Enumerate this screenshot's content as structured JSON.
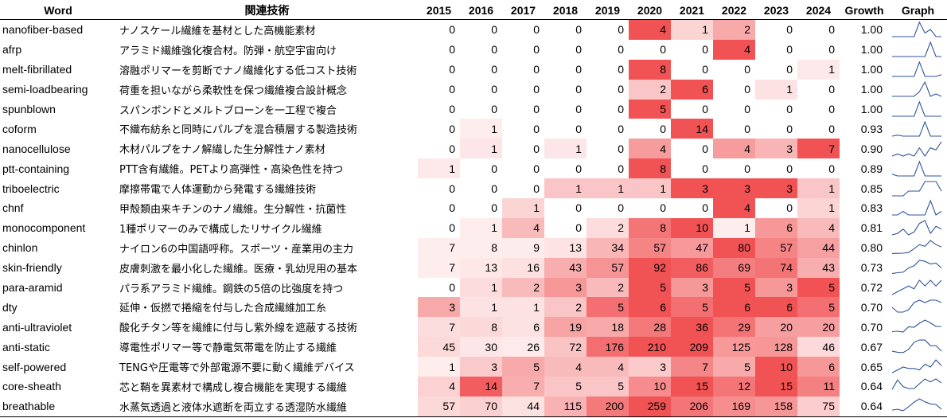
{
  "columns": {
    "word": "Word",
    "tech": "関連技術",
    "years": [
      "2015",
      "2016",
      "2017",
      "2018",
      "2019",
      "2020",
      "2021",
      "2022",
      "2023",
      "2024"
    ],
    "growth": "Growth",
    "graph": "Graph"
  },
  "heat_color": "#f0494b",
  "sparkline_color": "#2f5597",
  "rows": [
    {
      "word": "nanofiber-based",
      "tech": "ナノスケール繊維を基材とした高機能素材",
      "values": [
        0,
        0,
        0,
        0,
        0,
        4,
        1,
        2,
        0,
        0
      ],
      "growth": "1.00"
    },
    {
      "word": "afrp",
      "tech": "アラミド繊維強化複合材。防弾・航空宇宙向け",
      "values": [
        0,
        0,
        0,
        0,
        0,
        0,
        0,
        4,
        0,
        0
      ],
      "growth": "1.00"
    },
    {
      "word": "melt-fibrillated",
      "tech": "溶融ポリマーを剪断でナノ繊維化する低コスト技術",
      "values": [
        0,
        0,
        0,
        0,
        0,
        8,
        0,
        0,
        0,
        1
      ],
      "growth": "1.00"
    },
    {
      "word": "semi-loadbearing",
      "tech": "荷重を担いながら柔軟性を保つ繊維複合設計概念",
      "values": [
        0,
        0,
        0,
        0,
        0,
        2,
        6,
        0,
        1,
        0
      ],
      "growth": "1.00"
    },
    {
      "word": "spunblown",
      "tech": "スパンボンドとメルトブローンを一工程で複合",
      "values": [
        0,
        0,
        0,
        0,
        0,
        5,
        0,
        0,
        0,
        0
      ],
      "growth": "1.00"
    },
    {
      "word": "coform",
      "tech": "不織布紡糸と同時にパルプを混合積層する製造技術",
      "values": [
        0,
        1,
        0,
        0,
        0,
        0,
        14,
        0,
        0,
        0
      ],
      "growth": "0.93"
    },
    {
      "word": "nanocellulose",
      "tech": "木材パルプをナノ解繊した生分解性ナノ素材",
      "values": [
        0,
        1,
        0,
        1,
        0,
        4,
        0,
        4,
        3,
        7
      ],
      "growth": "0.90"
    },
    {
      "word": "ptt-containing",
      "tech": "PTT含有繊維。PETより高弾性・高染色性を持つ",
      "values": [
        1,
        0,
        0,
        0,
        0,
        8,
        0,
        0,
        0,
        0
      ],
      "growth": "0.89"
    },
    {
      "word": "triboelectric",
      "tech": "摩擦帯電で人体運動から発電する繊維技術",
      "values": [
        0,
        0,
        0,
        1,
        1,
        1,
        3,
        3,
        3,
        1
      ],
      "growth": "0.85"
    },
    {
      "word": "chnf",
      "tech": "甲殻類由来キチンのナノ繊維。生分解性・抗菌性",
      "values": [
        0,
        0,
        1,
        0,
        0,
        0,
        0,
        4,
        0,
        1
      ],
      "growth": "0.83"
    },
    {
      "word": "monocomponent",
      "tech": "1種ポリマーのみで構成したリサイクル繊維",
      "values": [
        0,
        1,
        4,
        0,
        2,
        8,
        10,
        1,
        6,
        4
      ],
      "growth": "0.81"
    },
    {
      "word": "chinlon",
      "tech": "ナイロン6の中国語呼称。スポーツ・産業用の主力",
      "values": [
        7,
        8,
        9,
        13,
        34,
        57,
        47,
        80,
        57,
        44
      ],
      "growth": "0.80"
    },
    {
      "word": "skin-friendly",
      "tech": "皮膚刺激を最小化した繊維。医療・乳幼児用の基本",
      "values": [
        7,
        13,
        16,
        43,
        57,
        92,
        86,
        69,
        74,
        43
      ],
      "growth": "0.73"
    },
    {
      "word": "para-aramid",
      "tech": "パラ系アラミド繊維。鋼鉄の5倍の比強度を持つ",
      "values": [
        0,
        1,
        2,
        3,
        2,
        5,
        3,
        5,
        3,
        5
      ],
      "growth": "0.72"
    },
    {
      "word": "dty",
      "tech": "延伸・仮撚で捲縮を付与した合成繊維加工糸",
      "values": [
        3,
        1,
        1,
        2,
        5,
        6,
        5,
        6,
        6,
        5
      ],
      "growth": "0.70"
    },
    {
      "word": "anti-ultraviolet",
      "tech": "酸化チタン等を繊維に付与し紫外線を遮蔽する技術",
      "values": [
        7,
        8,
        6,
        19,
        18,
        28,
        36,
        29,
        20,
        20
      ],
      "growth": "0.70"
    },
    {
      "word": "anti-static",
      "tech": "導電性ポリマー等で静電気帯電を防止する繊維",
      "values": [
        45,
        30,
        26,
        72,
        176,
        210,
        209,
        125,
        128,
        46
      ],
      "growth": "0.67"
    },
    {
      "word": "self-powered",
      "tech": "TENGや圧電等で外部電源不要に動く繊維デバイス",
      "values": [
        1,
        3,
        5,
        4,
        4,
        3,
        7,
        5,
        10,
        6
      ],
      "growth": "0.65"
    },
    {
      "word": "core-sheath",
      "tech": "芯と鞘を異素材で構成し複合機能を実現する繊維",
      "values": [
        4,
        14,
        7,
        5,
        5,
        10,
        15,
        12,
        15,
        11
      ],
      "growth": "0.64"
    },
    {
      "word": "breathable",
      "tech": "水蒸気透過と液体水遮断を両立する透湿防水繊維",
      "values": [
        57,
        70,
        44,
        115,
        200,
        259,
        206,
        169,
        158,
        75
      ],
      "growth": "0.64"
    }
  ]
}
